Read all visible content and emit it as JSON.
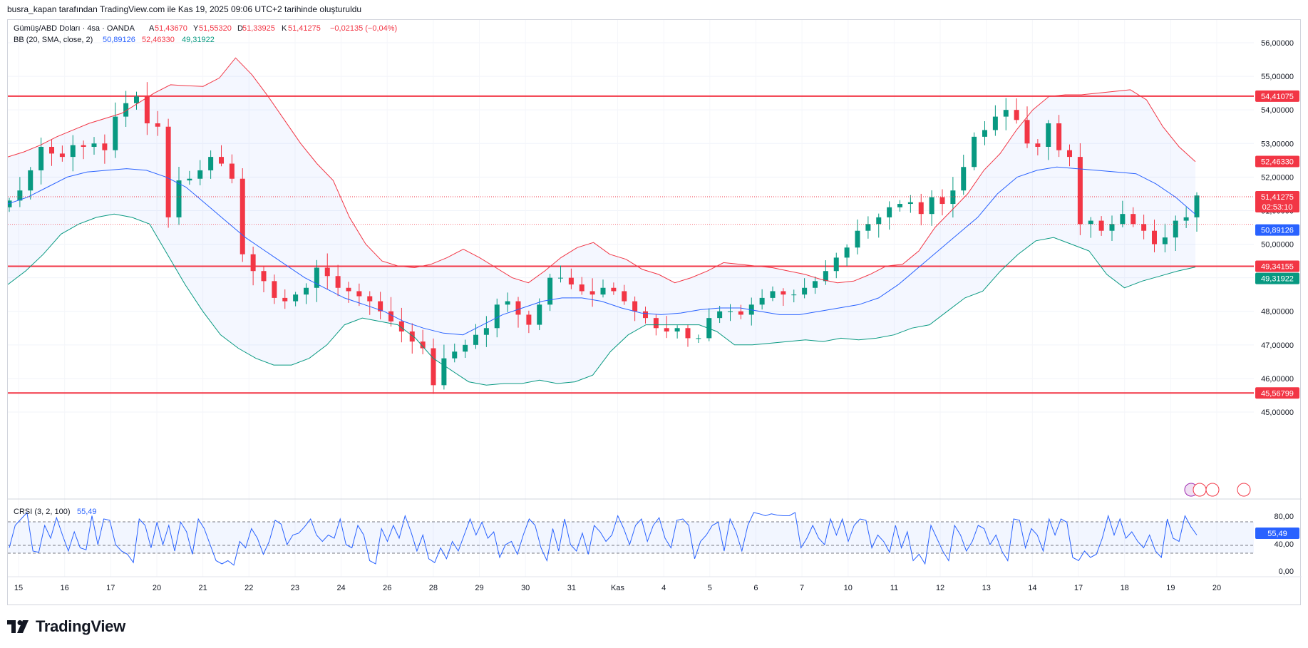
{
  "header": {
    "text": "busra_kapan tarafından TradingView.com ile Kas 19, 2025 09:06 UTC+2 tarihinde oluşturuldu"
  },
  "legend": {
    "symbol": "Gümüş/ABD Doları · 4sa · OANDA",
    "open_label": "A",
    "open": "51,43670",
    "high_label": "Y",
    "high": "51,55320",
    "low_label": "D",
    "low": "51,33925",
    "close_label": "K",
    "close": "51,41275",
    "change": "−0,02135 (−0,04%)",
    "bb_title": "BB (20, SMA, close, 2)",
    "bb_basis": "50,89126",
    "bb_upper": "52,46330",
    "bb_lower": "49,31922"
  },
  "crsi": {
    "title": "CRSI (3, 2, 100)",
    "value": "55,49"
  },
  "logo": {
    "text": "TradingView"
  },
  "colors": {
    "up": "#089981",
    "down": "#f23645",
    "basis": "#2962ff",
    "upper": "#f23645",
    "lower": "#089981",
    "band_fill": "#2962ff",
    "level": "#f23645",
    "crsi": "#2962ff"
  },
  "chart_data": [
    {
      "type": "candlestick",
      "symbol": "XAG/USD",
      "timeframe": "4sa",
      "ylim": [
        44.5,
        56.5
      ],
      "y_ticks": [
        "45,00000",
        "46,00000",
        "47,00000",
        "48,00000",
        "49,00000",
        "50,00000",
        "51,00000",
        "52,00000",
        "53,00000",
        "54,00000",
        "55,00000",
        "56,00000"
      ],
      "x_labels": [
        "15",
        "16",
        "17",
        "20",
        "21",
        "22",
        "23",
        "24",
        "26",
        "28",
        "29",
        "30",
        "31",
        "Kas",
        "4",
        "5",
        "6",
        "7",
        "10",
        "11",
        "12",
        "13",
        "14",
        "17",
        "18",
        "19",
        "20"
      ],
      "current_price": {
        "value": 51.41275,
        "label": "51,41275",
        "countdown": "02:53:10"
      },
      "horizontal_levels": [
        {
          "value": 54.41075,
          "label": "54,41075"
        },
        {
          "value": 49.34155,
          "label": "49,34155"
        },
        {
          "value": 45.56799,
          "label": "45,56799"
        }
      ],
      "price_labels": {
        "bb_upper": "52,46330",
        "bb_basis": "50,89126",
        "bb_lower": "49,31922"
      },
      "close": [
        51.3,
        51.6,
        52.2,
        52.9,
        52.7,
        52.6,
        52.95,
        52.9,
        53.0,
        52.8,
        53.8,
        54.2,
        54.4,
        53.6,
        53.5,
        50.8,
        51.9,
        51.95,
        52.2,
        52.6,
        52.4,
        51.95,
        49.7,
        49.2,
        48.9,
        48.4,
        48.3,
        48.5,
        48.7,
        49.3,
        49.05,
        48.7,
        48.6,
        48.45,
        48.3,
        48.0,
        47.7,
        47.4,
        47.1,
        46.9,
        45.8,
        46.6,
        46.8,
        47.0,
        47.3,
        47.5,
        48.2,
        48.3,
        47.9,
        47.6,
        48.2,
        49.0,
        49.0,
        48.8,
        48.6,
        48.5,
        48.7,
        48.6,
        48.3,
        48.0,
        47.8,
        47.5,
        47.4,
        47.5,
        47.2,
        47.2,
        47.8,
        48.0,
        48.0,
        47.9,
        48.2,
        48.4,
        48.6,
        48.5,
        48.5,
        48.7,
        48.9,
        49.2,
        49.6,
        49.9,
        50.4,
        50.6,
        50.8,
        51.1,
        51.2,
        51.25,
        50.9,
        51.4,
        51.2,
        51.6,
        52.3,
        53.2,
        53.4,
        53.8,
        54.0,
        53.7,
        53.0,
        52.9,
        53.6,
        52.8,
        52.6,
        50.6,
        50.7,
        50.4,
        50.6,
        50.9,
        50.6,
        50.4,
        50.0,
        50.2,
        50.7,
        50.8,
        51.45
      ],
      "bb_upper": [
        52.6,
        52.75,
        52.95,
        53.2,
        53.4,
        53.6,
        53.75,
        53.9,
        54.2,
        54.5,
        54.75,
        54.72,
        54.7,
        54.95,
        55.55,
        55.05,
        54.4,
        53.7,
        53.0,
        52.4,
        51.9,
        50.8,
        50.0,
        49.5,
        49.35,
        49.3,
        49.4,
        49.6,
        49.85,
        49.6,
        49.3,
        49.0,
        48.85,
        49.2,
        49.6,
        49.9,
        50.05,
        49.7,
        49.55,
        49.25,
        49.1,
        48.85,
        49.0,
        49.2,
        49.45,
        49.4,
        49.35,
        49.3,
        49.2,
        49.1,
        48.95,
        48.85,
        48.9,
        49.1,
        49.35,
        49.4,
        49.8,
        50.5,
        51.0,
        51.5,
        52.2,
        52.7,
        53.4,
        54.0,
        54.4,
        54.45,
        54.45,
        54.5,
        54.55,
        54.6,
        54.3,
        53.5,
        52.9,
        52.46
      ],
      "bb_basis": [
        51.2,
        51.4,
        51.7,
        52.0,
        52.15,
        52.2,
        52.25,
        52.2,
        52.0,
        51.7,
        51.2,
        50.7,
        50.2,
        49.8,
        49.4,
        49.0,
        48.7,
        48.4,
        48.2,
        48.0,
        47.7,
        47.5,
        47.35,
        47.3,
        47.6,
        47.9,
        48.1,
        48.3,
        48.4,
        48.4,
        48.3,
        48.1,
        47.95,
        47.9,
        47.95,
        48.05,
        48.1,
        48.1,
        48.0,
        47.9,
        47.9,
        48.0,
        48.1,
        48.2,
        48.4,
        48.8,
        49.3,
        49.8,
        50.3,
        50.8,
        51.5,
        52.0,
        52.2,
        52.3,
        52.25,
        52.2,
        52.15,
        52.1,
        51.8,
        51.4,
        50.89
      ],
      "bb_lower": [
        48.8,
        49.2,
        49.7,
        50.3,
        50.6,
        50.8,
        50.9,
        50.8,
        50.6,
        49.7,
        48.8,
        48.0,
        47.3,
        46.9,
        46.6,
        46.4,
        46.4,
        46.6,
        47.0,
        47.6,
        47.8,
        47.7,
        47.6,
        47.2,
        46.6,
        46.25,
        45.9,
        45.8,
        45.85,
        45.85,
        45.95,
        45.85,
        45.9,
        46.1,
        46.8,
        47.3,
        47.6,
        47.6,
        47.6,
        47.6,
        47.4,
        47.0,
        47.0,
        47.05,
        47.1,
        47.15,
        47.1,
        47.2,
        47.15,
        47.2,
        47.3,
        47.5,
        47.6,
        48.0,
        48.4,
        48.6,
        49.2,
        49.7,
        50.1,
        50.2,
        50.0,
        49.8,
        49.1,
        48.7,
        48.9,
        49.05,
        49.2,
        49.32
      ]
    },
    {
      "type": "line",
      "name": "CRSI (3, 2, 100)",
      "ylim": [
        0,
        100
      ],
      "y_ticks": [
        "0,00",
        "40,00",
        "80,00"
      ],
      "bands": [
        20,
        50,
        80
      ],
      "last_value": "55,49",
      "values": [
        35,
        70,
        80,
        90,
        30,
        28,
        70,
        50,
        82,
        55,
        30,
        60,
        35,
        32,
        85,
        40,
        80,
        78,
        40,
        30,
        25,
        12,
        80,
        70,
        35,
        75,
        40,
        70,
        30,
        75,
        60,
        25,
        80,
        65,
        40,
        15,
        10,
        15,
        8,
        45,
        35,
        65,
        50,
        25,
        45,
        78,
        72,
        40,
        55,
        58,
        68,
        80,
        55,
        45,
        55,
        50,
        80,
        40,
        35,
        70,
        55,
        15,
        10,
        65,
        45,
        70,
        50,
        85,
        60,
        30,
        55,
        18,
        12,
        35,
        18,
        45,
        30,
        55,
        80,
        55,
        75,
        50,
        60,
        20,
        40,
        45,
        25,
        55,
        80,
        70,
        35,
        15,
        65,
        30,
        80,
        40,
        30,
        58,
        25,
        70,
        60,
        45,
        55,
        85,
        65,
        40,
        70,
        80,
        45,
        70,
        82,
        50,
        35,
        78,
        80,
        70,
        18,
        45,
        55,
        70,
        75,
        30,
        80,
        60,
        30,
        70,
        90,
        88,
        85,
        88,
        86,
        85,
        85,
        90,
        35,
        50,
        70,
        50,
        40,
        80,
        55,
        80,
        45,
        70,
        80,
        78,
        35,
        55,
        45,
        28,
        70,
        35,
        60,
        15,
        25,
        10,
        70,
        50,
        30,
        15,
        70,
        55,
        30,
        45,
        70,
        65,
        40,
        55,
        30,
        15,
        80,
        78,
        35,
        65,
        55,
        30,
        80,
        55,
        80,
        75,
        20,
        15,
        30,
        20,
        25,
        50,
        85,
        55,
        80,
        50,
        60,
        45,
        35,
        55,
        30,
        20,
        80,
        50,
        45,
        85,
        68,
        55
      ]
    }
  ]
}
